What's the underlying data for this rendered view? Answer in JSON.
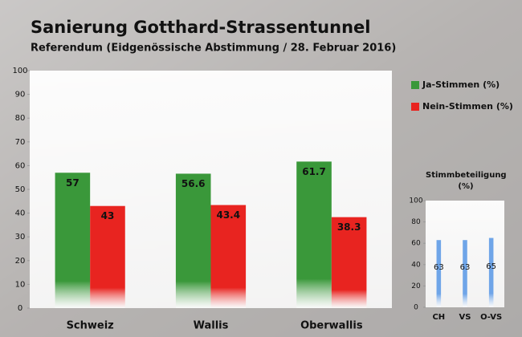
{
  "chart_data": [
    {
      "type": "bar",
      "title": "Sanierung Gotthard-Strassentunnel",
      "subtitle": "Referendum (Eidgenössische Abstimmung / 28. Februar 2016)",
      "categories": [
        "Schweiz",
        "Wallis",
        "Oberwallis"
      ],
      "series": [
        {
          "name": "Ja-Stimmen (%)",
          "color": "#3a983a",
          "values": [
            57,
            56.6,
            61.7
          ]
        },
        {
          "name": "Nein-Stimmen (%)",
          "color": "#e82420",
          "values": [
            43,
            43.4,
            38.3
          ]
        }
      ],
      "ylim": [
        0,
        100
      ],
      "yticks": [
        0,
        10,
        20,
        30,
        40,
        50,
        60,
        70,
        80,
        90,
        100
      ]
    },
    {
      "type": "bar",
      "title": "Stimmbeteiligung (%)",
      "categories": [
        "CH",
        "VS",
        "O-VS"
      ],
      "values": [
        63,
        63,
        65
      ],
      "color": "#6fa5e8",
      "ylim": [
        0,
        100
      ],
      "yticks": [
        0,
        20,
        40,
        60,
        80,
        100
      ]
    }
  ]
}
